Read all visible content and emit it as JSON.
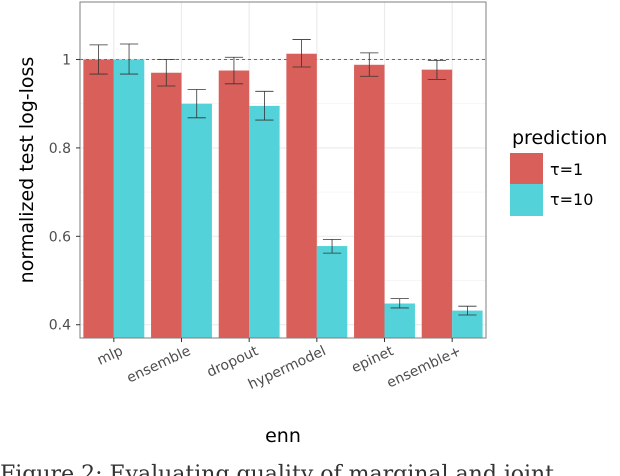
{
  "chart_data": {
    "type": "bar",
    "categories": [
      "mlp",
      "ensemble",
      "dropout",
      "hypermodel",
      "epinet",
      "ensemble+"
    ],
    "series": [
      {
        "name": "τ=1",
        "color": "#d9605a",
        "values": [
          1.0,
          0.97,
          0.975,
          1.013,
          0.988,
          0.977
        ],
        "err_low": [
          0.967,
          0.94,
          0.945,
          0.983,
          0.962,
          0.955
        ],
        "err_high": [
          1.033,
          1.0,
          1.005,
          1.045,
          1.015,
          0.998
        ]
      },
      {
        "name": "τ=10",
        "color": "#54d2d9",
        "values": [
          1.0,
          0.9,
          0.895,
          0.578,
          0.448,
          0.432
        ],
        "err_low": [
          0.967,
          0.868,
          0.863,
          0.562,
          0.438,
          0.422
        ],
        "err_high": [
          1.035,
          0.932,
          0.928,
          0.593,
          0.459,
          0.442
        ]
      }
    ],
    "xlabel": "enn",
    "ylabel": "normalized test log-loss",
    "ylim": [
      0.37,
      1.13
    ],
    "yticks": [
      "0.4",
      "0.6",
      "0.8",
      "1"
    ],
    "reference_line": 1.0,
    "legend": {
      "title": "prediction",
      "placement": "right"
    },
    "grid": true,
    "panel_border": "#7f7f7f",
    "grid_color": "#ebebeb"
  },
  "caption": "Figure 2: Evaluating quality of marginal and joint"
}
